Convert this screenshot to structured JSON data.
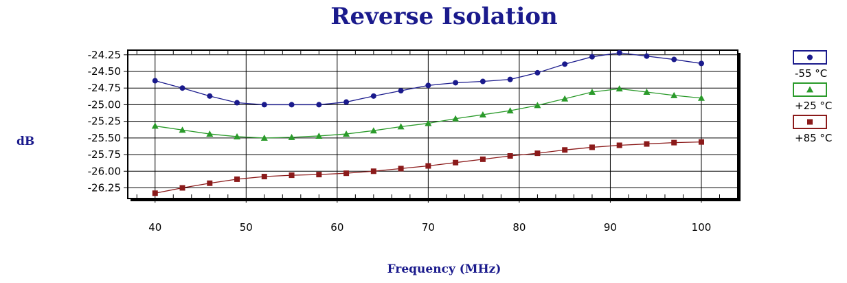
{
  "chart_data": {
    "type": "line",
    "title": "Reverse Isolation",
    "xlabel": "Frequency (MHz)",
    "ylabel": "dB",
    "xlim": [
      37,
      104
    ],
    "ylim": [
      -26.41,
      -24.18
    ],
    "xticks": [
      40,
      50,
      60,
      70,
      80,
      90,
      100
    ],
    "yticks": [
      -24.25,
      -24.5,
      -24.75,
      -25.0,
      -25.25,
      -25.5,
      -25.75,
      -26.0,
      -26.25
    ],
    "ytick_labels": [
      "-24.25",
      "-24.50",
      "-24.75",
      "-25.00",
      "-25.25",
      "-25.50",
      "-25.75",
      "-26.00",
      "-26.25"
    ],
    "grid": true,
    "legend_position": "right",
    "x": [
      40,
      43,
      46,
      49,
      52,
      55,
      58,
      61,
      64,
      67,
      70,
      73,
      76,
      79,
      82,
      85,
      88,
      91,
      94,
      97,
      100
    ],
    "series": [
      {
        "name": "-55 °C",
        "color": "#1a1a8c",
        "marker": "circle",
        "values": [
          -24.64,
          -24.75,
          -24.87,
          -24.97,
          -25.0,
          -25.0,
          -25.0,
          -24.96,
          -24.87,
          -24.79,
          -24.71,
          -24.67,
          -24.65,
          -24.62,
          -24.52,
          -24.39,
          -24.28,
          -24.22,
          -24.27,
          -24.32,
          -24.38
        ]
      },
      {
        "name": "+25 °C",
        "color": "#2a9a2a",
        "marker": "triangle",
        "values": [
          -25.32,
          -25.38,
          -25.44,
          -25.48,
          -25.5,
          -25.49,
          -25.47,
          -25.44,
          -25.39,
          -25.33,
          -25.28,
          -25.21,
          -25.15,
          -25.09,
          -25.01,
          -24.91,
          -24.81,
          -24.76,
          -24.81,
          -24.86,
          -24.9
        ]
      },
      {
        "name": "+85 °C",
        "color": "#8b1a1a",
        "marker": "square",
        "values": [
          -26.33,
          -26.25,
          -26.18,
          -26.12,
          -26.08,
          -26.06,
          -26.05,
          -26.03,
          -26.0,
          -25.96,
          -25.92,
          -25.87,
          -25.82,
          -25.77,
          -25.73,
          -25.68,
          -25.64,
          -25.61,
          -25.59,
          -25.57,
          -25.56
        ]
      }
    ]
  }
}
